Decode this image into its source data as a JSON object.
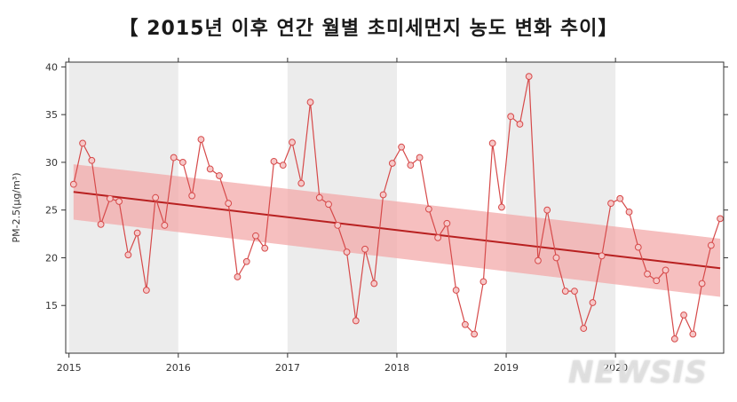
{
  "page": {
    "title": "【 2015년 이후 연간 월별 초미세먼지 농도 변화 추이】",
    "watermark": "NEWSIS"
  },
  "chart_data": {
    "type": "line",
    "title": "【 2015년 이후 연간 월별 초미세먼지 농도 변화 추이】",
    "xlabel": "",
    "ylabel": "PM-2.5(μg/m³)",
    "xlim": [
      2014.97,
      2020.99
    ],
    "ylim": [
      10,
      40.5
    ],
    "x_ticks": [
      "2015",
      "2016",
      "2017",
      "2018",
      "2019",
      "2020"
    ],
    "y_ticks": [
      15,
      20,
      25,
      30,
      35,
      40
    ],
    "grid": "alternating year bands",
    "colors": {
      "series": "#d64a4a",
      "trend": "#b82020",
      "band": "#f3a9a9",
      "shade": "#ececec"
    },
    "series": [
      {
        "values": [
          27.7,
          32.0,
          30.2,
          23.5,
          26.2,
          25.9,
          20.3,
          22.6,
          16.6,
          26.3,
          23.4,
          30.5,
          30.0,
          26.5,
          32.4,
          29.3,
          28.6,
          25.7,
          18.0,
          19.6,
          22.3,
          21.0,
          30.1,
          29.7,
          32.1,
          27.8,
          36.3,
          26.3,
          25.6,
          23.4,
          20.6,
          13.4,
          20.9,
          17.3,
          26.6,
          29.9,
          31.6,
          29.7,
          30.5,
          25.1,
          22.1,
          23.6,
          16.6,
          13.0,
          12.0,
          17.5,
          32.0,
          25.3,
          34.8,
          34.0,
          39.0,
          19.7,
          25.0,
          20.0,
          16.5,
          16.5,
          12.6,
          15.3,
          20.2,
          25.7,
          26.2,
          24.8,
          21.1,
          18.3,
          17.6,
          18.7,
          11.5,
          14.0,
          12.0,
          17.3,
          21.3,
          24.1
        ]
      }
    ],
    "trend": {
      "start": 26.9,
      "end": 18.9,
      "ci_lower_start": 24.0,
      "ci_upper_start": 29.8,
      "ci_lower_end": 15.9,
      "ci_upper_end": 22.0
    }
  }
}
